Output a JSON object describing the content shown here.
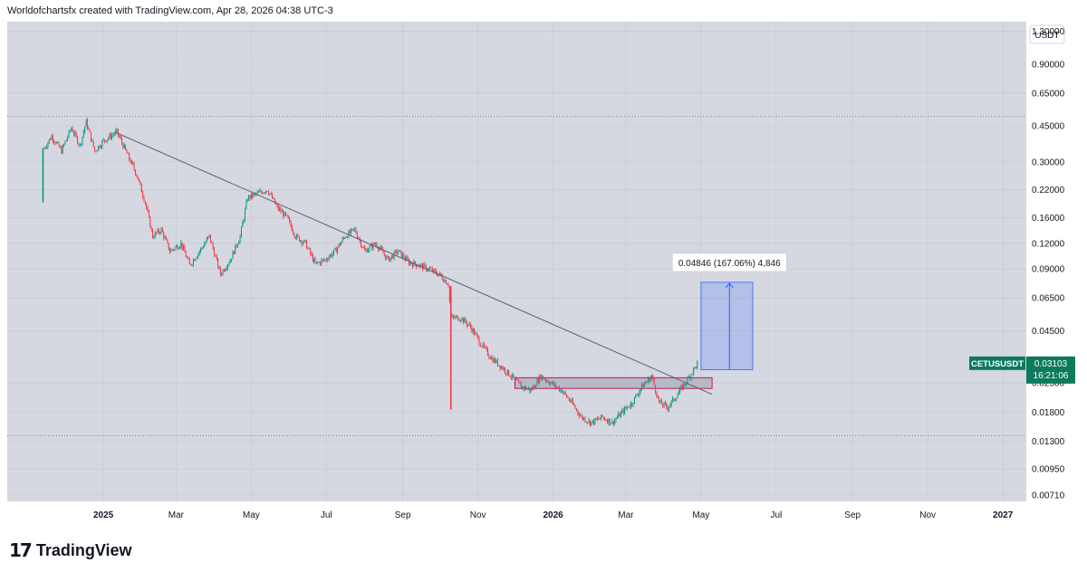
{
  "header": {
    "caption": "Worldofchartsfx created with TradingView.com, Apr 28, 2026 04:38 UTC-3"
  },
  "footer": {
    "brand": "TradingView",
    "logo_icon": "tradingview-logo-icon"
  },
  "colors": {
    "background": "#d6d8e1",
    "up_candle": "#089981",
    "down_candle": "#f23645",
    "trendline": "#5d606b",
    "projection_fill": "#2962ff",
    "ticker_badge": "#0d7a5c"
  },
  "chart_data": {
    "type": "candlestick",
    "symbol": "CETUSUSDT",
    "currency": "USDT",
    "y_scale": "log",
    "ylim": [
      0.0066,
      1.45
    ],
    "y_ticks": [
      "1.30000",
      "0.90000",
      "0.65000",
      "0.45000",
      "0.30000",
      "0.22000",
      "0.16000",
      "0.12000",
      "0.09000",
      "0.06500",
      "0.04500",
      "0.03103",
      "0.02500",
      "0.01800",
      "0.01300",
      "0.00950",
      "0.00710"
    ],
    "x_ticks": [
      "2025",
      "Mar",
      "May",
      "Jul",
      "Sep",
      "Nov",
      "2026",
      "Mar",
      "May",
      "Jul",
      "Sep",
      "Nov",
      "2027"
    ],
    "x_tick_dates": [
      "2025-01-01",
      "2025-03-01",
      "2025-05-01",
      "2025-07-01",
      "2025-09-01",
      "2025-11-01",
      "2026-01-01",
      "2026-03-01",
      "2026-05-01",
      "2026-07-01",
      "2026-09-01",
      "2026-11-01",
      "2027-01-01"
    ],
    "xlim": [
      "2024-10-15",
      "2027-01-20"
    ],
    "price_path": [
      [
        "2024-11-13",
        0.19
      ],
      [
        "2024-11-14",
        0.35
      ],
      [
        "2024-11-20",
        0.4
      ],
      [
        "2024-11-28",
        0.34
      ],
      [
        "2024-12-06",
        0.44
      ],
      [
        "2024-12-13",
        0.36
      ],
      [
        "2024-12-18",
        0.47
      ],
      [
        "2024-12-25",
        0.34
      ],
      [
        "2025-01-01",
        0.38
      ],
      [
        "2025-01-12",
        0.42
      ],
      [
        "2025-01-20",
        0.33
      ],
      [
        "2025-01-28",
        0.26
      ],
      [
        "2025-02-04",
        0.19
      ],
      [
        "2025-02-10",
        0.13
      ],
      [
        "2025-02-17",
        0.14
      ],
      [
        "2025-02-24",
        0.11
      ],
      [
        "2025-03-05",
        0.12
      ],
      [
        "2025-03-12",
        0.094
      ],
      [
        "2025-03-20",
        0.11
      ],
      [
        "2025-03-28",
        0.13
      ],
      [
        "2025-04-06",
        0.085
      ],
      [
        "2025-04-14",
        0.1
      ],
      [
        "2025-04-22",
        0.13
      ],
      [
        "2025-04-28",
        0.2
      ],
      [
        "2025-05-06",
        0.21
      ],
      [
        "2025-05-14",
        0.22
      ],
      [
        "2025-05-22",
        0.18
      ],
      [
        "2025-05-30",
        0.16
      ],
      [
        "2025-06-06",
        0.13
      ],
      [
        "2025-06-14",
        0.12
      ],
      [
        "2025-06-22",
        0.095
      ],
      [
        "2025-06-30",
        0.1
      ],
      [
        "2025-07-08",
        0.11
      ],
      [
        "2025-07-16",
        0.13
      ],
      [
        "2025-07-24",
        0.14
      ],
      [
        "2025-08-01",
        0.11
      ],
      [
        "2025-08-10",
        0.12
      ],
      [
        "2025-08-20",
        0.1
      ],
      [
        "2025-08-28",
        0.11
      ],
      [
        "2025-09-06",
        0.097
      ],
      [
        "2025-09-14",
        0.094
      ],
      [
        "2025-09-22",
        0.09
      ],
      [
        "2025-10-01",
        0.084
      ],
      [
        "2025-10-08",
        0.076
      ],
      [
        "2025-10-10",
        0.052
      ],
      [
        "2025-10-18",
        0.052
      ],
      [
        "2025-10-26",
        0.047
      ],
      [
        "2025-11-03",
        0.039
      ],
      [
        "2025-11-12",
        0.033
      ],
      [
        "2025-11-20",
        0.03
      ],
      [
        "2025-11-28",
        0.027
      ],
      [
        "2025-12-06",
        0.024
      ],
      [
        "2025-12-14",
        0.023
      ],
      [
        "2025-12-22",
        0.027
      ],
      [
        "2025-12-30",
        0.025
      ],
      [
        "2026-01-08",
        0.023
      ],
      [
        "2026-01-16",
        0.02
      ],
      [
        "2026-01-24",
        0.017
      ],
      [
        "2026-02-01",
        0.016
      ],
      [
        "2026-02-10",
        0.017
      ],
      [
        "2026-02-18",
        0.016
      ],
      [
        "2026-02-26",
        0.018
      ],
      [
        "2026-03-06",
        0.02
      ],
      [
        "2026-03-14",
        0.024
      ],
      [
        "2026-03-22",
        0.027
      ],
      [
        "2026-03-28",
        0.02
      ],
      [
        "2026-04-04",
        0.019
      ],
      [
        "2026-04-12",
        0.022
      ],
      [
        "2026-04-20",
        0.026
      ],
      [
        "2026-04-28",
        0.03103
      ]
    ],
    "wicks": [
      {
        "date": "2024-11-13",
        "high": 0.35,
        "low": 0.19
      },
      {
        "date": "2025-10-10",
        "high": 0.074,
        "low": 0.0185
      }
    ],
    "trendline": {
      "start": [
        "2025-01-10",
        0.42
      ],
      "end": [
        "2026-05-10",
        0.022
      ]
    },
    "support_zone": {
      "start": "2025-12-01",
      "end": "2026-05-10",
      "top": 0.0265,
      "bottom": 0.0235
    },
    "horizontal_levels": [
      0.5,
      0.0138
    ],
    "projection": {
      "start": "2026-05-01",
      "end": "2026-06-12",
      "bottom": 0.029,
      "top": 0.0775,
      "label": "0.04846 (167.06%) 4,846"
    },
    "last_price": {
      "label": "CETUSUSDT",
      "value": "0.03103",
      "countdown": "16:21:06"
    }
  }
}
